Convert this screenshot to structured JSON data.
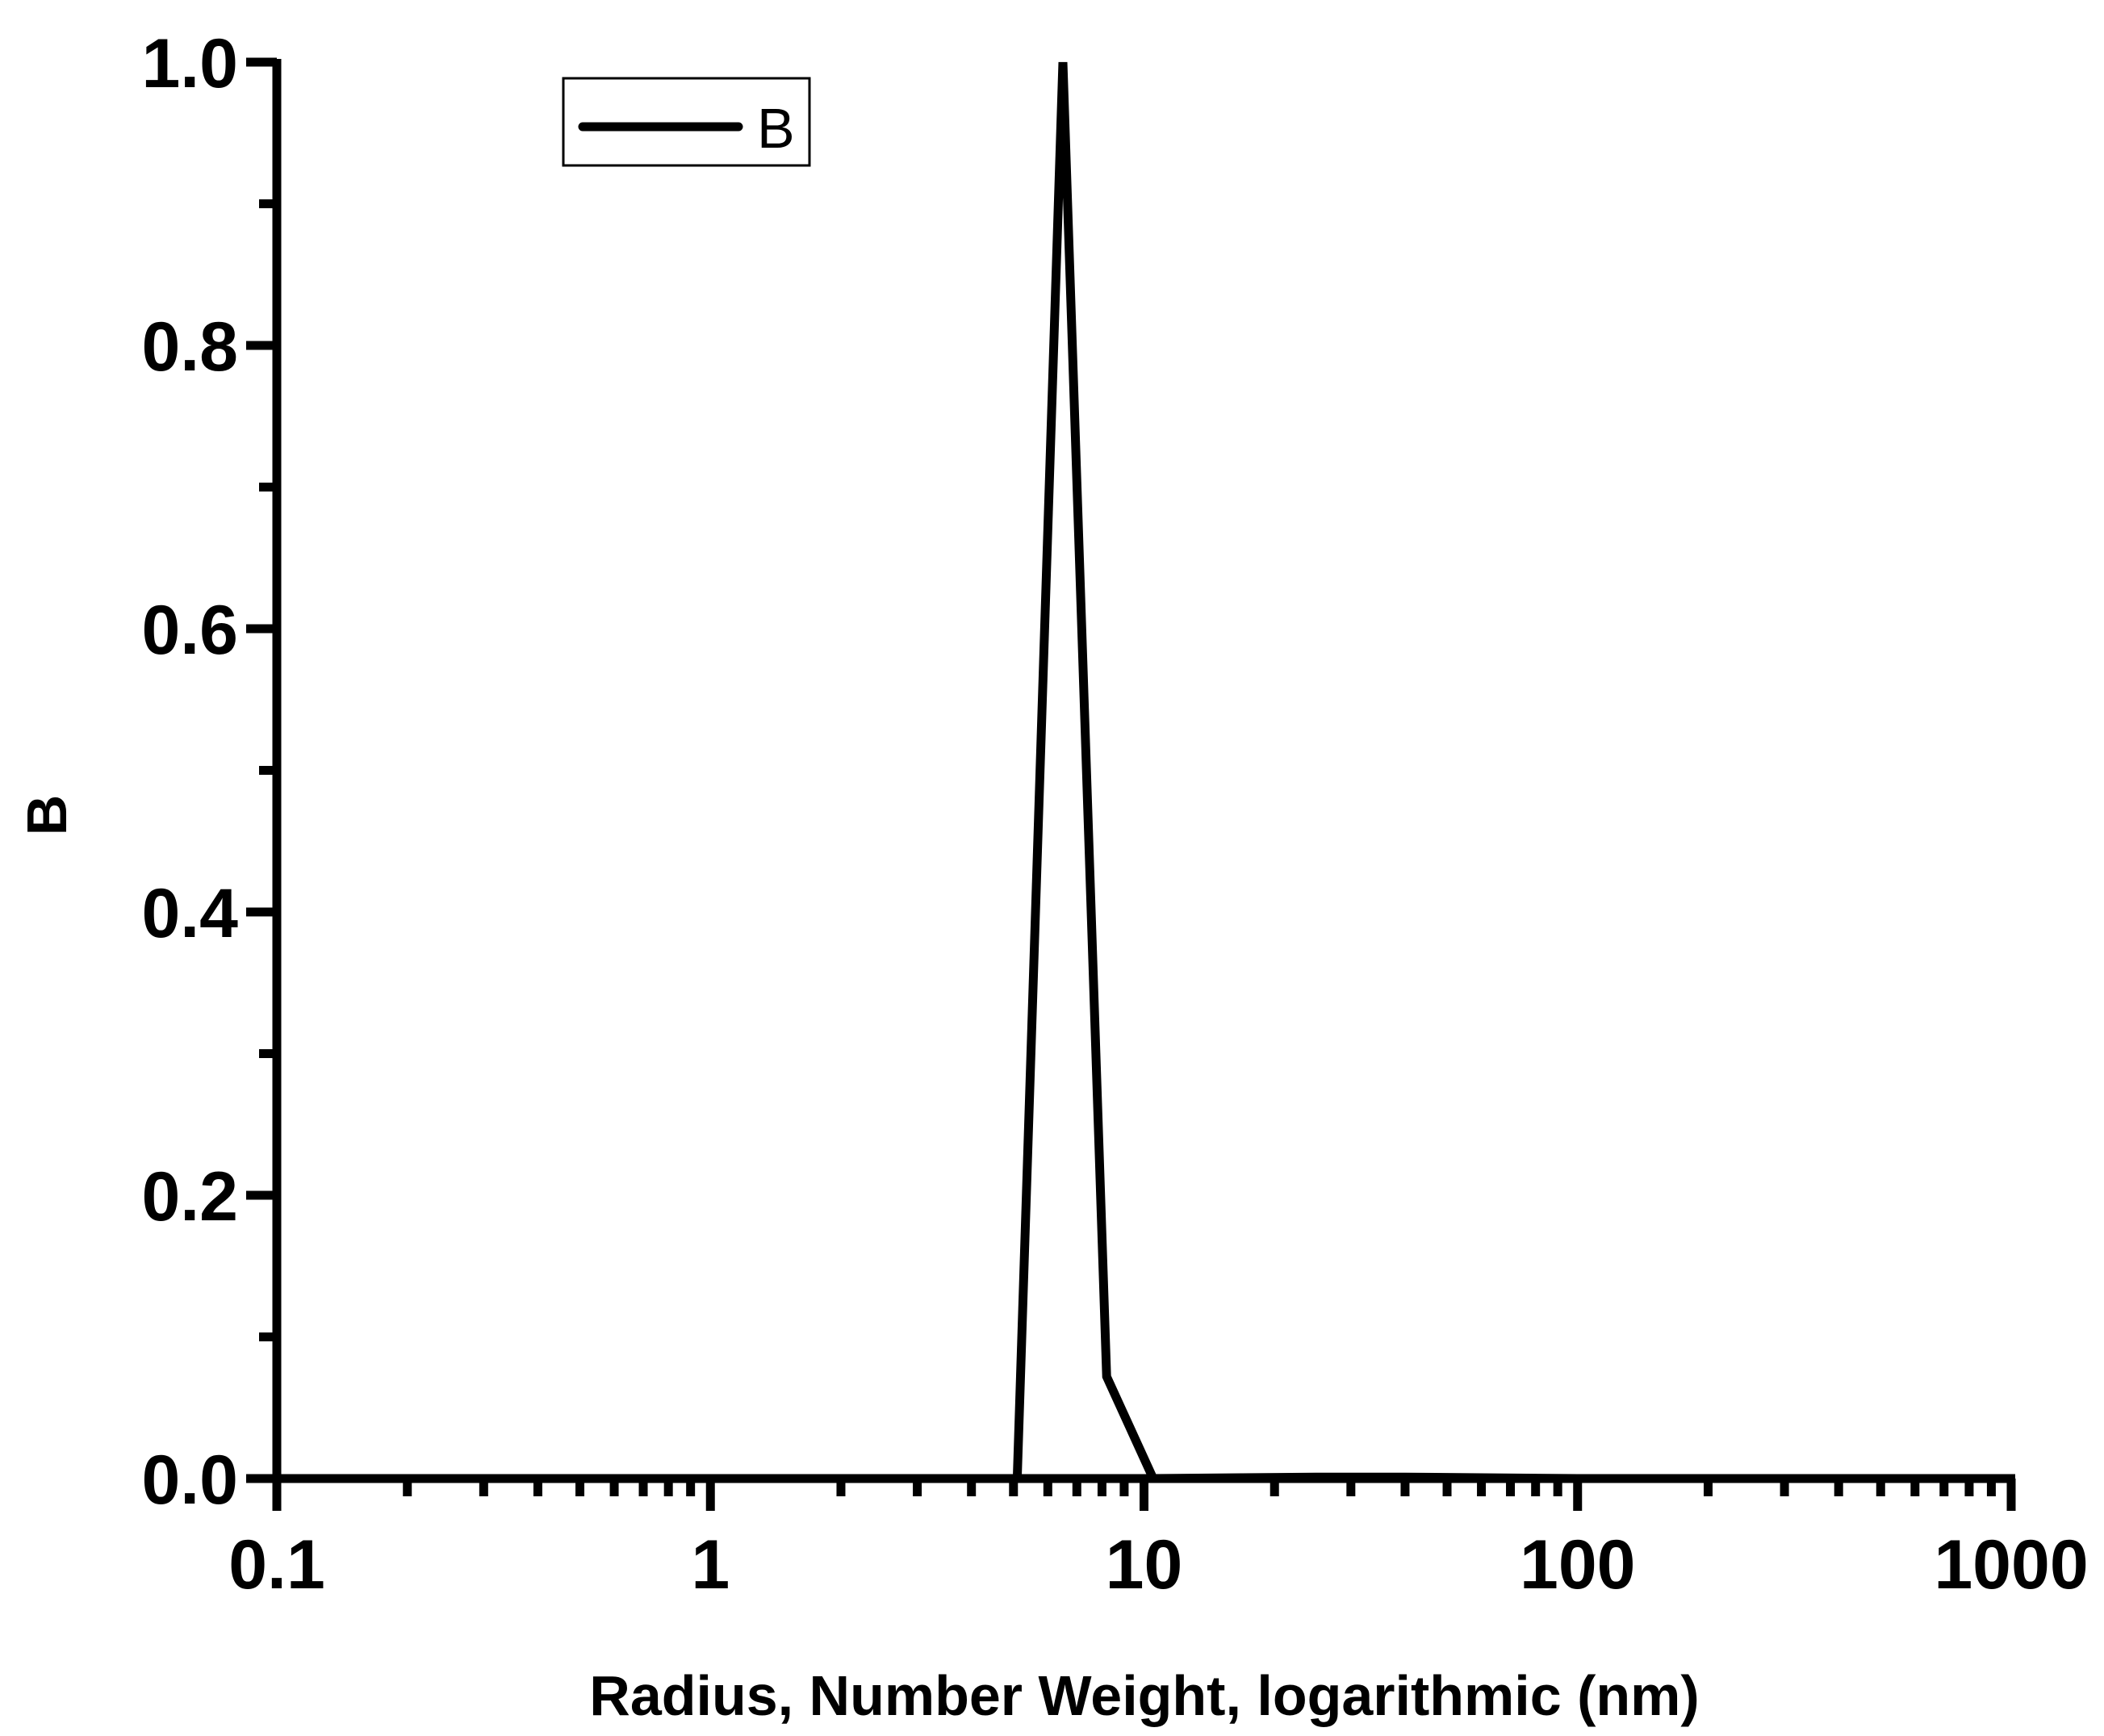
{
  "chart_data": {
    "type": "line",
    "scale": {
      "x": "log",
      "y": "linear"
    },
    "xlabel": "Radius, Number Weight, logarithmic (nm)",
    "ylabel": "B",
    "xlim": [
      0.1,
      1000
    ],
    "ylim": [
      0,
      1.0
    ],
    "x_ticks": [
      0.1,
      1,
      10,
      100,
      1000
    ],
    "x_tick_labels": [
      "0.1",
      "1",
      "10",
      "100",
      "1000"
    ],
    "y_ticks": [
      0,
      0.2,
      0.4,
      0.6,
      0.8,
      1.0
    ],
    "y_tick_labels": [
      "0.0",
      "0.2",
      "0.4",
      "0.6",
      "0.8",
      "1.0"
    ],
    "grid": false,
    "legend_position": "top-left",
    "series": [
      {
        "name": "B",
        "color": "#000000",
        "x": [
          0.1,
          1,
          4.5,
          5.1,
          6.5,
          8.2,
          10.5,
          25,
          40,
          100,
          1000
        ],
        "y": [
          0,
          0,
          0,
          0,
          1.0,
          0.072,
          0,
          0.001,
          0.001,
          0,
          0
        ]
      }
    ]
  }
}
